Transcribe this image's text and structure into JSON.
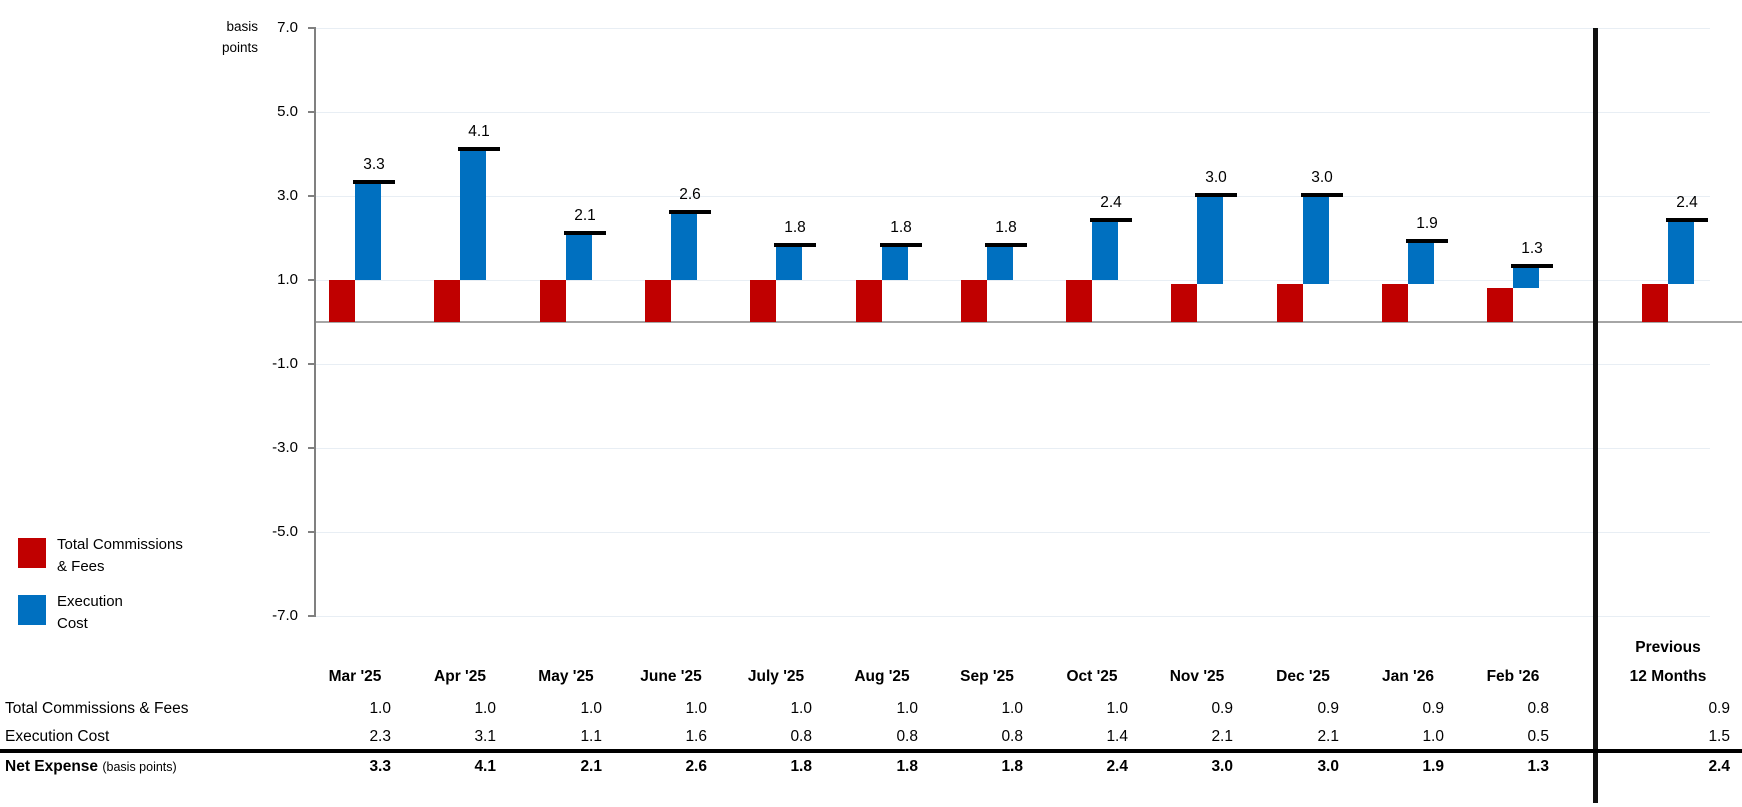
{
  "chart": {
    "y_axis_title_line1": "basis",
    "y_axis_title_line2": "points",
    "tick_labels": [
      "7.0",
      "5.0",
      "3.0",
      "1.0",
      "-1.0",
      "-3.0",
      "-5.0",
      "-7.0"
    ]
  },
  "legend": {
    "items": [
      {
        "id": "total-commissions-fees",
        "color": "#C00000",
        "line1": "Total Commissions",
        "line2": "& Fees"
      },
      {
        "id": "execution-cost",
        "color": "#0070C0",
        "line1": "Execution",
        "line2": "Cost"
      }
    ]
  },
  "chart_data": {
    "type": "bar",
    "stacked": true,
    "title": "",
    "ylabel": "basis points",
    "ylim": [
      -7.0,
      7.0
    ],
    "yticks": [
      7.0,
      5.0,
      3.0,
      1.0,
      -1.0,
      -3.0,
      -5.0,
      -7.0
    ],
    "grid": true,
    "legend_position": "bottom-left",
    "categories": [
      "Mar '25",
      "Apr '25",
      "May '25",
      "June '25",
      "July '25",
      "Aug '25",
      "Sep '25",
      "Oct '25",
      "Nov '25",
      "Dec '25",
      "Jan '26",
      "Feb '26",
      "Previous 12 Months"
    ],
    "series": [
      {
        "name": "Total Commissions & Fees",
        "color": "#C00000",
        "values": [
          1.0,
          1.0,
          1.0,
          1.0,
          1.0,
          1.0,
          1.0,
          1.0,
          0.9,
          0.9,
          0.9,
          0.8,
          0.9
        ]
      },
      {
        "name": "Execution Cost",
        "color": "#0070C0",
        "values": [
          2.3,
          3.1,
          1.1,
          1.6,
          0.8,
          0.8,
          0.8,
          1.4,
          2.1,
          2.1,
          1.0,
          0.5,
          1.5
        ]
      }
    ],
    "net_totals": [
      3.3,
      4.1,
      2.1,
      2.6,
      1.8,
      1.8,
      1.8,
      2.4,
      3.0,
      3.0,
      1.9,
      1.3,
      2.4
    ],
    "bar_labels": [
      "3.3",
      "4.1",
      "2.1",
      "2.6",
      "1.8",
      "1.8",
      "1.8",
      "2.4",
      "3.0",
      "3.0",
      "1.9",
      "1.3",
      "2.4"
    ],
    "separator_after_category_index": 11
  },
  "table": {
    "col_headers": [
      "Mar '25",
      "Apr '25",
      "May '25",
      "June '25",
      "July '25",
      "Aug '25",
      "Sep '25",
      "Oct '25",
      "Nov '25",
      "Dec '25",
      "Jan '26",
      "Feb '26"
    ],
    "last_col_header_line1": "Previous",
    "last_col_header_line2": "12 Months",
    "rows": [
      {
        "label": "Total Commissions & Fees",
        "label_suffix": "",
        "bold": false,
        "values": [
          "1.0",
          "1.0",
          "1.0",
          "1.0",
          "1.0",
          "1.0",
          "1.0",
          "1.0",
          "0.9",
          "0.9",
          "0.9",
          "0.8"
        ],
        "last_value": "0.9"
      },
      {
        "label": "Execution Cost",
        "label_suffix": "",
        "bold": false,
        "values": [
          "2.3",
          "3.1",
          "1.1",
          "1.6",
          "0.8",
          "0.8",
          "0.8",
          "1.4",
          "2.1",
          "2.1",
          "1.0",
          "0.5"
        ],
        "last_value": "1.5"
      },
      {
        "label": "Net Expense",
        "label_suffix": "(basis points)",
        "bold": true,
        "values": [
          "3.3",
          "4.1",
          "2.1",
          "2.6",
          "1.8",
          "1.8",
          "1.8",
          "2.4",
          "3.0",
          "3.0",
          "1.9",
          "1.3"
        ],
        "last_value": "2.4"
      }
    ]
  },
  "colors": {
    "red": "#C00000",
    "blue": "#0070C0",
    "gridline": "#E8EEF4",
    "zero_line": "#A6A6A6",
    "axis_gray": "#808080",
    "separator": "#111111",
    "rule_black": "#000000"
  }
}
